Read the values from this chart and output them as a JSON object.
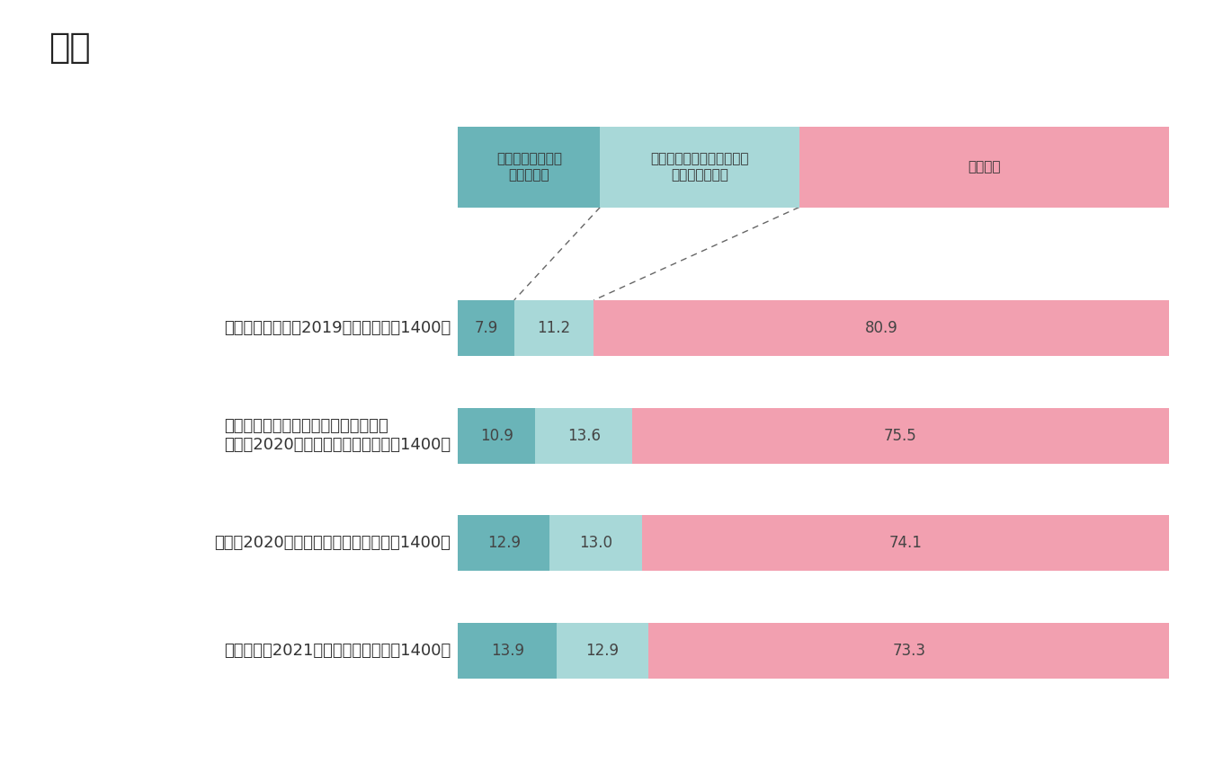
{
  "title": "図３",
  "categories": [
    "１．コロナ前（～2019年）　（ｎ＝1400）",
    "２．１回目の緊急事態宣言までの期間\n　　（2020年１月～５月）　（ｎ＝1400）",
    "３．（2020年６月～１２月）　（ｎ＝1400）",
    "４．現在（2021年以降）　　（ｎ＝1400）"
  ],
  "values": [
    [
      7.9,
      11.2,
      80.9
    ],
    [
      10.9,
      13.6,
      75.5
    ],
    [
      12.9,
      13.0,
      74.1
    ],
    [
      13.9,
      12.9,
      73.3
    ]
  ],
  "colors": [
    "#6ab4b8",
    "#a8d8d8",
    "#f2a0b0"
  ],
  "header_labels": [
    "どのような病気か\n知っている",
    "名前は聞いたことがあるが\n詳細は知らない",
    "知らない"
  ],
  "background_color": "#ffffff",
  "bar_height": 0.52,
  "title_fontsize": 28,
  "label_fontsize": 13,
  "value_fontsize": 12,
  "header_fontsize": 11
}
